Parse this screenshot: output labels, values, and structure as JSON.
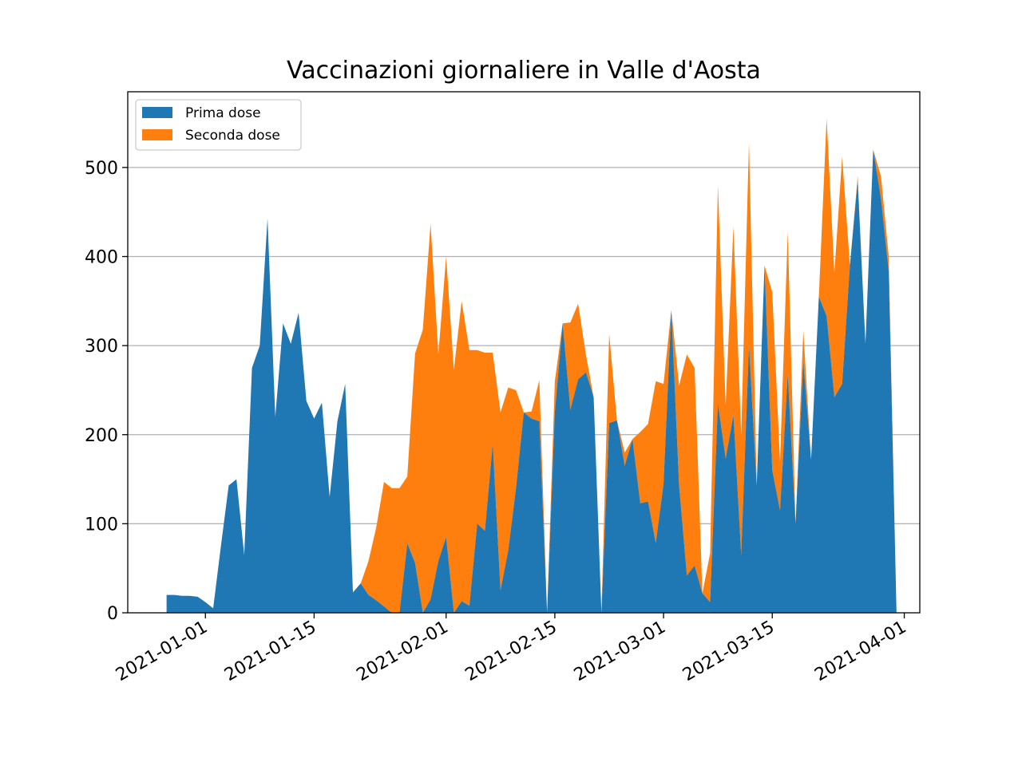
{
  "chart_data": {
    "type": "area",
    "stacked": true,
    "title": "Vaccinazioni giornaliere in Valle d'Aosta",
    "xlabel": "",
    "ylabel": "",
    "x_start": "2020-12-27",
    "x_end": "2021-03-29",
    "xlim": [
      "2020-12-22",
      "2021-04-03"
    ],
    "ylim": [
      0,
      585
    ],
    "x_ticks": [
      "2021-01-01",
      "2021-01-15",
      "2021-02-01",
      "2021-02-15",
      "2021-03-01",
      "2021-03-15",
      "2021-04-01"
    ],
    "y_ticks": [
      "0",
      "100",
      "200",
      "300",
      "400",
      "500"
    ],
    "grid": "horizontal",
    "legend_position": "upper-left",
    "colors": {
      "prima": "#1f77b4",
      "seconda": "#ff7f0e"
    },
    "series": [
      {
        "name": "Prima dose",
        "values": [
          20,
          20,
          19,
          19,
          18,
          12,
          5,
          75,
          143,
          150,
          65,
          275,
          300,
          443,
          220,
          325,
          302,
          337,
          238,
          218,
          236,
          130,
          215,
          257,
          23,
          33,
          20,
          14,
          7,
          0,
          0,
          78,
          56,
          0,
          15,
          58,
          85,
          0,
          13,
          8,
          100,
          92,
          190,
          25,
          70,
          140,
          225,
          218,
          215,
          0,
          225,
          325,
          228,
          262,
          270,
          242,
          0,
          213,
          216,
          165,
          195,
          123,
          125,
          78,
          145,
          340,
          143,
          42,
          53,
          22,
          12,
          235,
          173,
          222,
          65,
          300,
          143,
          390,
          160,
          115,
          268,
          100,
          282,
          172,
          355,
          333,
          242,
          257,
          390,
          485,
          302,
          520,
          465,
          383,
          0
        ]
      },
      {
        "name": "Seconda dose",
        "values": [
          0,
          0,
          0,
          0,
          0,
          0,
          0,
          0,
          0,
          0,
          0,
          0,
          0,
          0,
          0,
          0,
          0,
          0,
          0,
          0,
          0,
          0,
          0,
          0,
          0,
          0,
          38,
          82,
          140,
          140,
          140,
          75,
          235,
          318,
          422,
          232,
          315,
          273,
          337,
          287,
          195,
          200,
          102,
          200,
          183,
          110,
          0,
          8,
          46,
          0,
          35,
          0,
          98,
          85,
          20,
          0,
          0,
          100,
          0,
          15,
          0,
          80,
          87,
          182,
          112,
          0,
          112,
          248,
          222,
          0,
          55,
          245,
          60,
          212,
          135,
          228,
          0,
          0,
          200,
          55,
          160,
          0,
          35,
          0,
          0,
          222,
          140,
          255,
          0,
          5,
          0,
          0,
          25,
          17,
          0
        ]
      }
    ]
  }
}
